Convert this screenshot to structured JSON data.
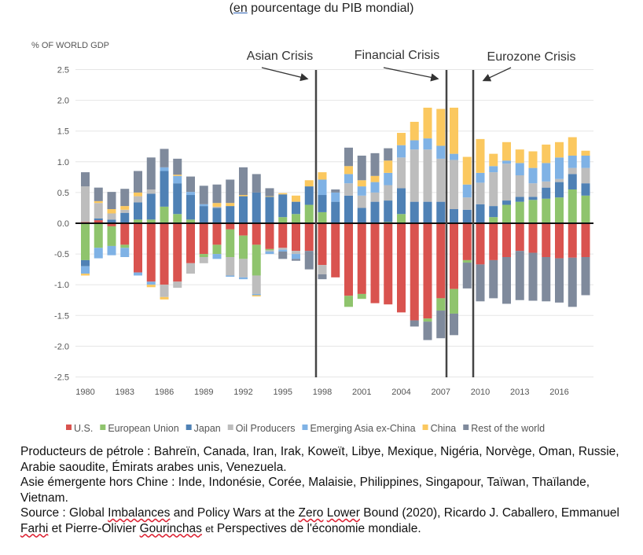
{
  "header": {
    "subtitle_open": "(",
    "subtitle_link": "en",
    "subtitle_rest": " pourcentage du PIB mondial)"
  },
  "chart_data": {
    "type": "bar",
    "stacked": true,
    "ylabel": "% OF WORLD GDP",
    "ylim": [
      -2.5,
      2.5
    ],
    "yticks": [
      "2.5",
      "2.0",
      "1.5",
      "1.0",
      "0.5",
      "0.0",
      "-0.5",
      "-1.0",
      "-1.5",
      "-2.0",
      "-2.5"
    ],
    "ytick_values": [
      2.5,
      2.0,
      1.5,
      1.0,
      0.5,
      0.0,
      -0.5,
      -1.0,
      -1.5,
      -2.0,
      -2.5
    ],
    "grid": true,
    "legend_position": "bottom",
    "xtick_labels": [
      "1980",
      "1983",
      "1986",
      "1989",
      "1992",
      "1995",
      "1998",
      "2001",
      "2004",
      "2007",
      "2010",
      "2013",
      "2016"
    ],
    "categories": [
      "1980",
      "1981",
      "1982",
      "1983",
      "1984",
      "1985",
      "1986",
      "1987",
      "1988",
      "1989",
      "1990",
      "1991",
      "1992",
      "1993",
      "1994",
      "1995",
      "1996",
      "1997",
      "1998",
      "1999",
      "2000",
      "2001",
      "2002",
      "2003",
      "2004",
      "2005",
      "2006",
      "2007",
      "2008",
      "2009",
      "2010",
      "2011",
      "2012",
      "2013",
      "2014",
      "2015",
      "2016",
      "2017",
      "2018"
    ],
    "series": [
      {
        "name": "U.S.",
        "color": "#d9534f",
        "values": [
          0.02,
          0.05,
          -0.05,
          -0.35,
          -0.8,
          -0.95,
          -1.0,
          -0.95,
          -0.65,
          -0.5,
          -0.35,
          -0.1,
          -0.2,
          -0.35,
          -0.42,
          -0.4,
          -0.45,
          -0.45,
          -0.68,
          -0.88,
          -1.18,
          -1.15,
          -1.3,
          -1.32,
          -1.45,
          -1.58,
          -1.55,
          -1.22,
          -1.07,
          -0.6,
          -0.67,
          -0.6,
          -0.55,
          -0.45,
          -0.48,
          -0.55,
          -0.57,
          -0.56,
          -0.55
        ]
      },
      {
        "name": "European Union",
        "color": "#8fc46d",
        "values": [
          -0.6,
          -0.4,
          -0.32,
          -0.05,
          0.06,
          0.06,
          0.27,
          0.15,
          0.06,
          -0.05,
          -0.15,
          -0.45,
          -0.38,
          -0.5,
          -0.02,
          0.1,
          0.15,
          0.3,
          0.18,
          0.0,
          -0.18,
          -0.08,
          0.0,
          0.02,
          0.15,
          0.0,
          -0.05,
          -0.2,
          -0.4,
          -0.04,
          0.0,
          0.1,
          0.3,
          0.35,
          0.38,
          0.4,
          0.42,
          0.55,
          0.45
        ]
      },
      {
        "name": "Japan",
        "color": "#4f81b5",
        "values": [
          -0.1,
          0.03,
          0.06,
          0.17,
          0.28,
          0.42,
          0.58,
          0.5,
          0.4,
          0.28,
          0.25,
          0.28,
          0.44,
          0.5,
          0.43,
          0.37,
          0.2,
          0.3,
          0.28,
          0.35,
          0.45,
          0.25,
          0.35,
          0.35,
          0.42,
          0.35,
          0.35,
          0.35,
          0.23,
          0.22,
          0.31,
          0.18,
          0.07,
          0.08,
          0.05,
          0.18,
          0.25,
          0.25,
          0.2
        ]
      },
      {
        "name": "Oil Producers",
        "color": "#bdbdbd",
        "values": [
          0.58,
          0.25,
          0.1,
          0.05,
          0.1,
          0.07,
          -0.2,
          -0.1,
          -0.17,
          -0.1,
          0.02,
          -0.3,
          -0.3,
          -0.3,
          -0.02,
          -0.03,
          -0.05,
          0.0,
          -0.15,
          0.0,
          0.2,
          0.2,
          0.15,
          0.25,
          0.5,
          0.85,
          0.85,
          0.7,
          0.8,
          0.2,
          0.35,
          0.55,
          0.6,
          0.35,
          0.22,
          0.1,
          0.05,
          0.1,
          0.25
        ]
      },
      {
        "name": "Emerging Asia ex-China",
        "color": "#7fb2e5",
        "values": [
          -0.12,
          -0.17,
          -0.15,
          -0.15,
          -0.05,
          -0.05,
          0.06,
          0.12,
          0.05,
          0.03,
          -0.08,
          -0.02,
          -0.03,
          -0.02,
          -0.04,
          -0.03,
          -0.08,
          0.0,
          0.25,
          0.15,
          0.15,
          0.15,
          0.17,
          0.2,
          0.2,
          0.15,
          0.18,
          0.21,
          0.1,
          0.21,
          0.16,
          0.1,
          0.05,
          0.2,
          0.25,
          0.3,
          0.35,
          0.2,
          0.2
        ]
      },
      {
        "name": "China",
        "color": "#fbc85f",
        "values": [
          -0.03,
          0.03,
          0.07,
          0.06,
          0.06,
          -0.04,
          -0.04,
          0.02,
          0.0,
          0.0,
          0.06,
          0.05,
          0.02,
          -0.02,
          0.01,
          0.02,
          0.1,
          0.1,
          0.12,
          0.0,
          0.13,
          0.1,
          0.1,
          0.2,
          0.2,
          0.3,
          0.5,
          0.6,
          0.75,
          0.45,
          0.55,
          0.2,
          0.3,
          0.22,
          0.27,
          0.3,
          0.25,
          0.3,
          0.08
        ]
      },
      {
        "name": "Rest of the world",
        "color": "#7f8a9c",
        "values": [
          0.23,
          0.22,
          0.28,
          0.28,
          0.35,
          0.52,
          0.3,
          0.26,
          0.25,
          0.3,
          0.3,
          0.38,
          0.45,
          0.3,
          0.13,
          -0.12,
          -0.03,
          -0.3,
          -0.08,
          0.05,
          0.3,
          0.4,
          0.37,
          0.2,
          0.0,
          -0.1,
          -0.3,
          -0.45,
          -0.35,
          -0.42,
          -0.6,
          -0.62,
          -0.76,
          -0.8,
          -0.78,
          -0.72,
          -0.72,
          -0.8,
          -0.62
        ]
      }
    ],
    "annotations": [
      {
        "label": "Asian Crisis",
        "year": 1997.5
      },
      {
        "label": "Financial Crisis",
        "year": 2007.5
      },
      {
        "label": "Eurozone Crisis",
        "year": 2009.5
      }
    ]
  },
  "notes": {
    "line1": "Producteurs de pétrole : Bahreïn, Canada, Iran, Irak, Koweït, Libye, Mexique, Nigéria, Norvège, Oman, Russie, Arabie saoudite, Émirats arabes unis, Venezuela.",
    "line2": "Asie émergente hors Chine : Inde, Indonésie, Corée, Malaisie, Philippines, Singapour, Taïwan, Thaïlande, Vietnam.",
    "src_a": "Source : Global ",
    "src_b": "Imbalances",
    "src_c": " and Policy Wars at the ",
    "src_d": "Zero",
    "src_e": " ",
    "src_f": "Lower",
    "src_g": " Bound (2020), Ricardo J. Caballero, Emmanuel ",
    "src_h": "Farhi",
    "src_i": " et Pierre-Olivier ",
    "src_j": "Gourinchas",
    "src_k": " ",
    "src_l": "et",
    "src_m": " Perspectives de l'économie mondiale."
  }
}
